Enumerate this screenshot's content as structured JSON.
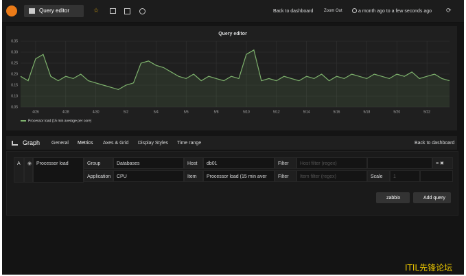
{
  "navbar": {
    "title": "Query editor",
    "back": "Back to dashboard",
    "zoom": "Zoom Out",
    "range": "a month ago to a few seconds ago"
  },
  "chart_data": {
    "type": "line",
    "title": "Query editor",
    "categories": [
      null,
      null,
      "4/26",
      null,
      null,
      null,
      "4/28",
      null,
      null,
      null,
      "4/30",
      null,
      null,
      null,
      "5/2",
      null,
      null,
      null,
      "5/4",
      null,
      null,
      null,
      "5/6",
      null,
      null,
      null,
      "5/8",
      null,
      null,
      null,
      "5/10",
      null,
      null,
      null,
      "5/12",
      null,
      null,
      null,
      "5/14",
      null,
      null,
      null,
      "5/16",
      null,
      null,
      null,
      "5/18",
      null,
      null,
      null,
      "5/20",
      null,
      null,
      null,
      "5/22",
      null,
      null,
      null
    ],
    "series": [
      {
        "name": "Processor load (15 min average per core)",
        "color": "#7eb26d",
        "values": [
          0.19,
          0.17,
          0.27,
          0.29,
          0.19,
          0.17,
          0.19,
          0.18,
          0.2,
          0.17,
          0.16,
          0.15,
          0.14,
          0.13,
          0.15,
          0.16,
          0.25,
          0.26,
          0.24,
          0.23,
          0.21,
          0.19,
          0.18,
          0.2,
          0.17,
          0.19,
          0.18,
          0.17,
          0.19,
          0.18,
          0.29,
          0.31,
          0.17,
          0.18,
          0.17,
          0.19,
          0.18,
          0.17,
          0.19,
          0.18,
          0.2,
          0.17,
          0.19,
          0.18,
          0.2,
          0.19,
          0.18,
          0.2,
          0.19,
          0.18,
          0.2,
          0.19,
          0.21,
          0.18,
          0.19,
          0.2,
          0.18,
          0.17
        ]
      }
    ],
    "ylim": [
      0.05,
      0.35
    ],
    "yticks": [
      0.05,
      {
        "value": 0.1,
        "label": "0.10"
      },
      0.15,
      {
        "value": 0.2,
        "label": "0.20"
      },
      0.25,
      {
        "value": 0.3,
        "label": "0.30"
      },
      0.35
    ],
    "grid": true
  },
  "editor": {
    "panel": "Graph",
    "tabs": [
      "General",
      "Metrics",
      "Axes & Grid",
      "Display Styles",
      "Time range"
    ],
    "back": "Back to dashboard",
    "query": {
      "ref": "A",
      "alias": "Processor load",
      "group_label": "Group",
      "group": "Databases",
      "host_label": "Host",
      "host": "db01",
      "filter_label": "Filter",
      "host_filter": "Host filter (regex)",
      "application_label": "Application",
      "application": "CPU",
      "item_label": "Item",
      "item": "Processor load (15 min aver",
      "item_filter": "Item filter (regex)",
      "scale_label": "Scale",
      "scale": "1"
    },
    "datasource": "zabbix",
    "add_query": "Add query"
  },
  "watermark": "ITIL先锋论坛"
}
